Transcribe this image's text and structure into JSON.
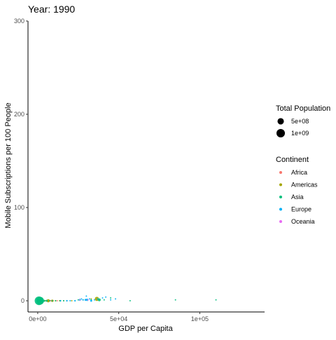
{
  "chart_data": {
    "type": "scatter",
    "title": "Year: 1990",
    "xlabel": "GDP per Capita",
    "ylabel": "Mobile Subscriptions per 100 People",
    "xlim": [
      -6000,
      140000
    ],
    "ylim": [
      -12,
      300
    ],
    "x_ticks": [
      0,
      50000,
      100000
    ],
    "x_tick_labels": [
      "0e+00",
      "5e+04",
      "1e+05"
    ],
    "y_ticks": [
      0,
      100,
      200,
      300
    ],
    "y_tick_labels": [
      "0",
      "100",
      "200",
      "300"
    ],
    "grid": false,
    "legend_position": "right",
    "size_legend": {
      "title": "Total Population",
      "entries": [
        {
          "label": "5e+08",
          "value": 500000000
        },
        {
          "label": "1e+09",
          "value": 1000000000
        }
      ]
    },
    "color_legend": {
      "title": "Continent",
      "entries": [
        {
          "label": "Africa",
          "color": "#F8766D"
        },
        {
          "label": "Americas",
          "color": "#A3A500"
        },
        {
          "label": "Asia",
          "color": "#00BF7D"
        },
        {
          "label": "Europe",
          "color": "#00B0F6"
        },
        {
          "label": "Oceania",
          "color": "#E76BF3"
        }
      ]
    },
    "series": [
      {
        "name": "Africa",
        "color": "#F8766D",
        "points": [
          {
            "x": 500,
            "y": 0,
            "pop": 20000000
          },
          {
            "x": 800,
            "y": 0,
            "pop": 30000000
          },
          {
            "x": 1200,
            "y": 0,
            "pop": 25000000
          },
          {
            "x": 1600,
            "y": 0,
            "pop": 15000000
          },
          {
            "x": 2100,
            "y": 0,
            "pop": 100000000
          },
          {
            "x": 2600,
            "y": 0,
            "pop": 10000000
          },
          {
            "x": 3300,
            "y": 0,
            "pop": 12000000
          },
          {
            "x": 4200,
            "y": 0,
            "pop": 8000000
          },
          {
            "x": 5200,
            "y": 0,
            "pop": 6000000
          },
          {
            "x": 6500,
            "y": 0,
            "pop": 35000000
          },
          {
            "x": 8000,
            "y": 0,
            "pop": 5000000
          },
          {
            "x": 9500,
            "y": 0,
            "pop": 4000000
          },
          {
            "x": 12000,
            "y": 0,
            "pop": 3000000
          },
          {
            "x": 14000,
            "y": 0,
            "pop": 2000000
          },
          {
            "x": 18000,
            "y": 0,
            "pop": 2000000
          }
        ]
      },
      {
        "name": "Americas",
        "color": "#A3A500",
        "points": [
          {
            "x": 2500,
            "y": 0,
            "pop": 8000000
          },
          {
            "x": 4500,
            "y": 0,
            "pop": 12000000
          },
          {
            "x": 6500,
            "y": 0,
            "pop": 150000000
          },
          {
            "x": 9000,
            "y": 0,
            "pop": 85000000
          },
          {
            "x": 11000,
            "y": 0,
            "pop": 33000000
          },
          {
            "x": 13500,
            "y": 0,
            "pop": 20000000
          },
          {
            "x": 16000,
            "y": 0,
            "pop": 4000000
          },
          {
            "x": 21000,
            "y": 0,
            "pop": 5000000
          },
          {
            "x": 33000,
            "y": 2,
            "pop": 28000000
          },
          {
            "x": 36500,
            "y": 2,
            "pop": 250000000
          }
        ]
      },
      {
        "name": "Asia",
        "color": "#00BF7D",
        "points": [
          {
            "x": 800,
            "y": 0,
            "pop": 1100000000
          },
          {
            "x": 1500,
            "y": 0,
            "pop": 870000000
          },
          {
            "x": 2200,
            "y": 0,
            "pop": 180000000
          },
          {
            "x": 3000,
            "y": 0,
            "pop": 110000000
          },
          {
            "x": 4000,
            "y": 0,
            "pop": 60000000
          },
          {
            "x": 5500,
            "y": 0,
            "pop": 60000000
          },
          {
            "x": 7500,
            "y": 0,
            "pop": 20000000
          },
          {
            "x": 9000,
            "y": 0,
            "pop": 18000000
          },
          {
            "x": 11000,
            "y": 0,
            "pop": 15000000
          },
          {
            "x": 14000,
            "y": 0,
            "pop": 43000000
          },
          {
            "x": 16000,
            "y": 0,
            "pop": 5000000
          },
          {
            "x": 25000,
            "y": 1,
            "pop": 3000000
          },
          {
            "x": 28000,
            "y": 1,
            "pop": 6000000
          },
          {
            "x": 33000,
            "y": 1,
            "pop": 2000000
          },
          {
            "x": 38000,
            "y": 1,
            "pop": 123000000
          },
          {
            "x": 41000,
            "y": 1,
            "pop": 2000000
          },
          {
            "x": 45000,
            "y": 3,
            "pop": 1000000
          },
          {
            "x": 57000,
            "y": 0,
            "pop": 1000000
          },
          {
            "x": 85000,
            "y": 1,
            "pop": 500000
          },
          {
            "x": 110000,
            "y": 1,
            "pop": 500000
          }
        ]
      },
      {
        "name": "Europe",
        "color": "#00B0F6",
        "points": [
          {
            "x": 14000,
            "y": 0,
            "pop": 10000000
          },
          {
            "x": 18000,
            "y": 0,
            "pop": 38000000
          },
          {
            "x": 20000,
            "y": 0,
            "pop": 10000000
          },
          {
            "x": 23000,
            "y": 0,
            "pop": 40000000
          },
          {
            "x": 26000,
            "y": 1,
            "pop": 57000000
          },
          {
            "x": 28000,
            "y": 1,
            "pop": 10000000
          },
          {
            "x": 29500,
            "y": 1,
            "pop": 57000000
          },
          {
            "x": 30500,
            "y": 1,
            "pop": 79000000
          },
          {
            "x": 32000,
            "y": 2,
            "pop": 15000000
          },
          {
            "x": 33000,
            "y": 0,
            "pop": 58000000
          },
          {
            "x": 35000,
            "y": 1,
            "pop": 8000000
          },
          {
            "x": 37000,
            "y": 2,
            "pop": 5000000
          },
          {
            "x": 40000,
            "y": 3,
            "pop": 9000000
          },
          {
            "x": 42000,
            "y": 4,
            "pop": 7000000
          },
          {
            "x": 45000,
            "y": 1,
            "pop": 400000
          },
          {
            "x": 48000,
            "y": 2,
            "pop": 5000000
          },
          {
            "x": 30000,
            "y": 5,
            "pop": 4000000
          },
          {
            "x": 27000,
            "y": 2,
            "pop": 5000000
          }
        ]
      },
      {
        "name": "Oceania",
        "color": "#E76BF3",
        "points": [
          {
            "x": 26000,
            "y": 1,
            "pop": 3000000
          },
          {
            "x": 31000,
            "y": 1,
            "pop": 17000000
          }
        ]
      }
    ]
  }
}
